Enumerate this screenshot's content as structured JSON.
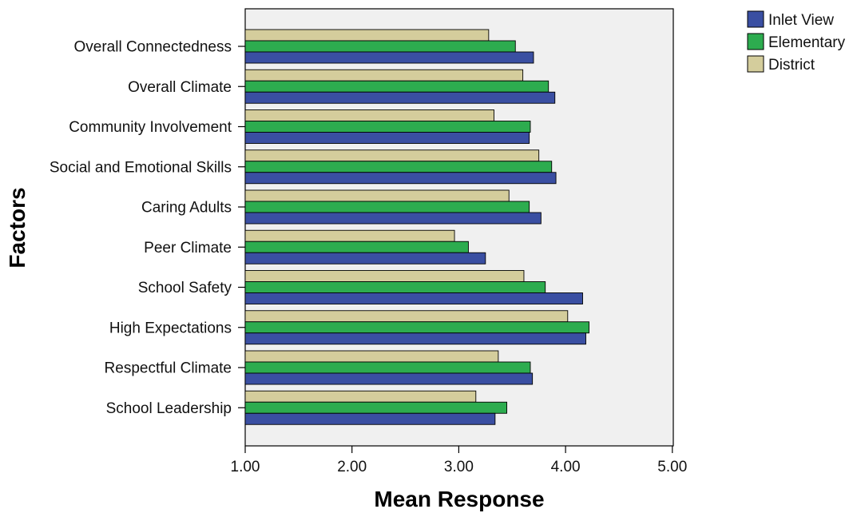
{
  "chart_data": {
    "type": "bar",
    "orientation": "horizontal",
    "title": "",
    "xlabel": "Mean Response",
    "ylabel": "Factors",
    "xlim": [
      1.0,
      5.2
    ],
    "xticks": [
      "1.00",
      "2.00",
      "3.00",
      "4.00",
      "5.00"
    ],
    "xtick_values": [
      1,
      2,
      3,
      4,
      5
    ],
    "grid": false,
    "legend_position": "top-right, outside plot",
    "categories": [
      "Overall Connectedness",
      "Overall Climate",
      "Community Involvement",
      "Social and Emotional Skills",
      "Caring Adults",
      "Peer Climate",
      "School Safety",
      "High Expectations",
      "Respectful Climate",
      "School Leadership"
    ],
    "series": [
      {
        "name": "Inlet View",
        "color": "#3a4fa2",
        "values": [
          3.7,
          3.9,
          3.66,
          3.91,
          3.77,
          3.25,
          4.16,
          4.19,
          3.69,
          3.34
        ]
      },
      {
        "name": "Elementary",
        "color": "#2dac4f",
        "values": [
          3.53,
          3.84,
          3.67,
          3.87,
          3.66,
          3.09,
          3.81,
          4.22,
          3.67,
          3.45
        ]
      },
      {
        "name": "District",
        "color": "#d4cd9c",
        "values": [
          3.28,
          3.6,
          3.33,
          3.75,
          3.47,
          2.96,
          3.61,
          4.02,
          3.37,
          3.16
        ]
      }
    ]
  }
}
